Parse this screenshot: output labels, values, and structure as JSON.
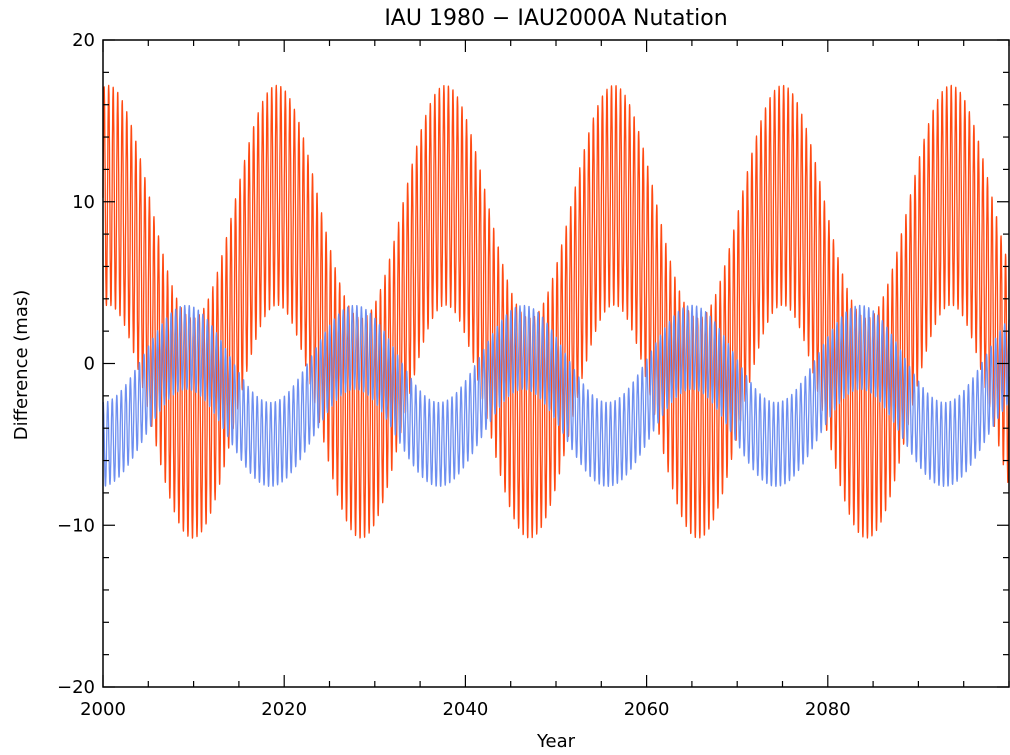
{
  "chart_data": {
    "type": "line",
    "title": "IAU 1980 − IAU2000A Nutation",
    "xlabel": "Year",
    "ylabel": "Difference (mas)",
    "xlim": [
      2000,
      2100
    ],
    "ylim": [
      -20,
      20
    ],
    "xticks": [
      2000,
      2020,
      2040,
      2060,
      2080
    ],
    "xtick_labels": [
      "2000",
      "2020",
      "2040",
      "2060",
      "2080"
    ],
    "yticks": [
      -20,
      -10,
      0,
      10,
      20
    ],
    "ytick_labels": [
      "−20",
      "−10",
      "0",
      "10",
      "20"
    ],
    "grid": false,
    "series": [
      {
        "color": "#ff4a12",
        "baseline": 3.2,
        "long_amplitude": 7.2,
        "long_period_years": 18.6,
        "long_phase_year": 2000.6,
        "fast_amplitude": 6.8,
        "fast_period_years": 0.5,
        "extrema_x": [
          2000.3,
          2010.0,
          2018.8,
          2028.0,
          2037.5,
          2047.3,
          2056.0,
          2066.0,
          2074.8,
          2084.5,
          2093.5
        ],
        "extrema_y": [
          17.5,
          -11.3,
          18.3,
          -11.0,
          17.5,
          -11.0,
          17.0,
          -11.0,
          17.7,
          -10.5,
          17.8
        ]
      },
      {
        "color": "#6e8ff0",
        "baseline": -2.0,
        "long_amplitude": 3.0,
        "long_period_years": 18.6,
        "long_phase_year": 2009.2,
        "fast_amplitude": 2.6,
        "fast_period_years": 0.5,
        "extrema_x": [
          2006.5,
          2014.8,
          2024.0,
          2033.0,
          2043.5,
          2052.5,
          2062.0,
          2070.5,
          2080.0,
          2089.0
        ],
        "extrema_y": [
          -7.5,
          3.8,
          -7.5,
          3.8,
          -7.6,
          4.0,
          -7.6,
          3.8,
          -7.7,
          3.8
        ]
      }
    ]
  }
}
